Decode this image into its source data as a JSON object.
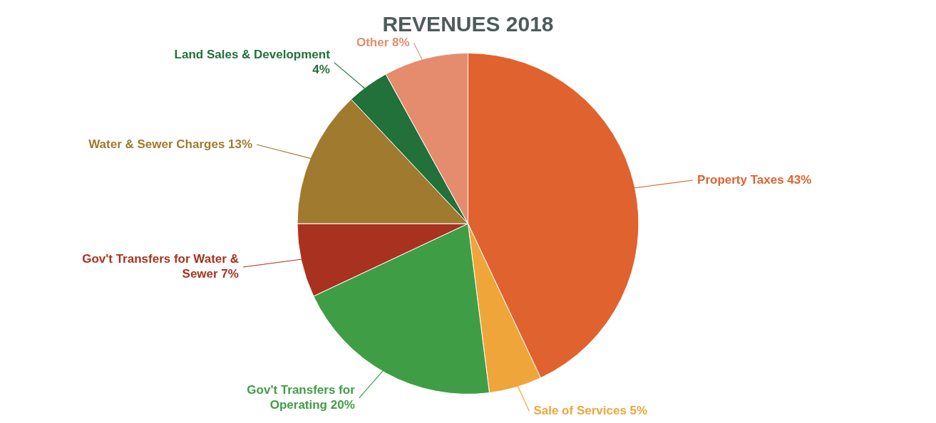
{
  "chart_data": {
    "type": "pie",
    "title": "REVENUES 2018",
    "categories": [
      "Property Taxes",
      "Sale of Services",
      "Gov't Transfers for Operating",
      "Gov't Transfers for Water & Sewer",
      "Water & Sewer Charges",
      "Land Sales & Development",
      "Other"
    ],
    "values": [
      43,
      5,
      20,
      7,
      13,
      4,
      8
    ],
    "value_labels": [
      "43%",
      "5%",
      "20%",
      "7%",
      "13%",
      "4%",
      "8%"
    ],
    "colors": [
      "#e0622e",
      "#f0a53a",
      "#3f9e45",
      "#a8321f",
      "#a07a2e",
      "#22703a",
      "#e58c6e"
    ],
    "legend": false
  }
}
